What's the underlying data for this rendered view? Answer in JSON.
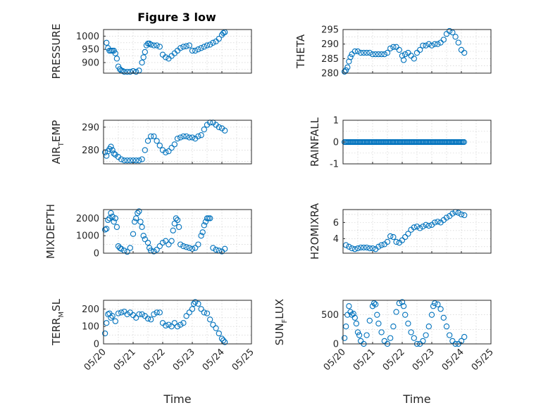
{
  "figure": {
    "title": "Figure 3 low",
    "colors": {
      "marker": "#0072bd",
      "axis": "#262626",
      "grid": "#c8c8c8",
      "background": "#ffffff"
    }
  },
  "chart_data": [
    {
      "type": "scatter",
      "name": "pressure-panel",
      "ylabel": "PRESSURE",
      "xlabel": "",
      "ylim": [
        860,
        1025
      ],
      "yticks": [
        900,
        950,
        1000
      ],
      "xlim": [
        "05/20",
        "05/25"
      ],
      "grid": true,
      "x": [
        20.1,
        20.15,
        20.2,
        20.25,
        20.3,
        20.35,
        20.4,
        20.45,
        20.5,
        20.55,
        20.6,
        20.65,
        20.7,
        20.8,
        20.9,
        21.0,
        21.1,
        21.2,
        21.3,
        21.35,
        21.4,
        21.45,
        21.5,
        21.55,
        21.6,
        21.7,
        21.8,
        21.9,
        22.0,
        22.1,
        22.2,
        22.3,
        22.4,
        22.5,
        22.6,
        22.7,
        22.8,
        22.9,
        23.0,
        23.1,
        23.2,
        23.3,
        23.4,
        23.5,
        23.6,
        23.7,
        23.8,
        23.9,
        24.0,
        24.05,
        24.1
      ],
      "y": [
        975,
        955,
        945,
        945,
        945,
        945,
        935,
        915,
        885,
        875,
        870,
        868,
        865,
        865,
        865,
        868,
        865,
        870,
        900,
        920,
        940,
        965,
        972,
        972,
        968,
        965,
        965,
        960,
        930,
        920,
        915,
        925,
        935,
        945,
        955,
        960,
        962,
        965,
        945,
        945,
        950,
        955,
        960,
        965,
        968,
        975,
        980,
        990,
        1005,
        1012,
        1015
      ]
    },
    {
      "type": "scatter",
      "name": "theta-panel",
      "ylabel": "THETA",
      "xlabel": "",
      "ylim": [
        280,
        295
      ],
      "yticks": [
        280,
        285,
        290,
        295
      ],
      "xlim": [
        "05/20",
        "05/25"
      ],
      "grid": true,
      "x": [
        20.05,
        20.1,
        20.15,
        20.2,
        20.25,
        20.3,
        20.4,
        20.5,
        20.6,
        20.7,
        20.8,
        20.9,
        21.0,
        21.1,
        21.2,
        21.3,
        21.4,
        21.5,
        21.6,
        21.7,
        21.8,
        21.9,
        22.0,
        22.05,
        22.1,
        22.2,
        22.3,
        22.4,
        22.5,
        22.6,
        22.7,
        22.8,
        22.9,
        23.0,
        23.1,
        23.2,
        23.3,
        23.4,
        23.5,
        23.6,
        23.7,
        23.8,
        23.9,
        24.0,
        24.1
      ],
      "y": [
        280.5,
        281,
        282,
        284,
        285.5,
        286.5,
        287.5,
        287.5,
        287,
        287,
        287,
        287,
        286.5,
        286.5,
        286.5,
        286.5,
        286.5,
        287,
        288.5,
        289,
        289,
        288,
        286,
        284.5,
        286.5,
        287,
        286,
        285,
        287,
        288,
        289.5,
        289.5,
        290,
        289.5,
        290,
        290,
        290.5,
        291.5,
        293.5,
        294.5,
        294,
        292.5,
        290.5,
        288,
        287
      ]
    },
    {
      "type": "scatter",
      "name": "air-temp-panel",
      "ylabel": "AIR_TEMP",
      "xlabel": "",
      "ylim": [
        274,
        293
      ],
      "yticks": [
        280,
        290
      ],
      "xlim": [
        "05/20",
        "05/25"
      ],
      "grid": true,
      "x": [
        20.05,
        20.1,
        20.15,
        20.2,
        20.25,
        20.3,
        20.35,
        20.4,
        20.5,
        20.6,
        20.7,
        20.8,
        20.9,
        21.0,
        21.1,
        21.2,
        21.3,
        21.4,
        21.5,
        21.6,
        21.7,
        21.8,
        21.9,
        22.0,
        22.1,
        22.2,
        22.3,
        22.4,
        22.5,
        22.6,
        22.7,
        22.8,
        22.9,
        23.0,
        23.1,
        23.2,
        23.3,
        23.4,
        23.5,
        23.6,
        23.7,
        23.8,
        23.9,
        24.0,
        24.1
      ],
      "y": [
        279,
        277.5,
        279.5,
        280.5,
        281.5,
        280,
        278.5,
        278,
        277,
        276,
        275.5,
        275.5,
        275.5,
        275.5,
        275.5,
        275.5,
        276,
        280,
        284,
        286,
        286,
        284,
        282,
        280,
        279,
        279.5,
        281,
        282.5,
        285,
        285.5,
        286,
        286,
        285.5,
        285.5,
        285,
        286,
        286.5,
        289,
        291,
        292,
        292,
        291,
        290,
        289.5,
        288.5
      ]
    },
    {
      "type": "scatter",
      "name": "rainfall-panel",
      "ylabel": "RAINFALL",
      "xlabel": "",
      "ylim": [
        -1,
        1
      ],
      "yticks": [
        -1,
        0,
        1
      ],
      "xlim": [
        "05/20",
        "05/25"
      ],
      "grid": true,
      "x_range": [
        20.05,
        24.1
      ],
      "y_constant": 0
    },
    {
      "type": "scatter",
      "name": "mixdepth-panel",
      "ylabel": "MIXDEPTH",
      "xlabel": "",
      "ylim": [
        0,
        2500
      ],
      "yticks": [
        0,
        1000,
        2000
      ],
      "xlim": [
        "05/20",
        "05/25"
      ],
      "grid": true,
      "x": [
        20.05,
        20.1,
        20.15,
        20.2,
        20.25,
        20.3,
        20.35,
        20.4,
        20.45,
        20.5,
        20.55,
        20.6,
        20.7,
        20.8,
        20.9,
        21.0,
        21.05,
        21.1,
        21.15,
        21.2,
        21.25,
        21.3,
        21.35,
        21.4,
        21.5,
        21.55,
        21.6,
        21.7,
        21.8,
        21.9,
        22.0,
        22.1,
        22.2,
        22.3,
        22.35,
        22.4,
        22.45,
        22.5,
        22.55,
        22.6,
        22.7,
        22.8,
        22.9,
        23.0,
        23.1,
        23.2,
        23.3,
        23.35,
        23.4,
        23.45,
        23.5,
        23.55,
        23.6,
        23.7,
        23.8,
        23.9,
        24.0,
        24.1
      ],
      "y": [
        1350,
        1400,
        1900,
        2000,
        2300,
        2100,
        1800,
        2000,
        1500,
        400,
        300,
        250,
        150,
        80,
        300,
        1100,
        1800,
        2000,
        2300,
        2400,
        1800,
        1500,
        1000,
        800,
        600,
        300,
        150,
        100,
        200,
        400,
        600,
        700,
        500,
        700,
        1300,
        1700,
        2000,
        1900,
        1500,
        500,
        400,
        350,
        300,
        250,
        300,
        500,
        1000,
        1200,
        1600,
        1800,
        2000,
        2000,
        2000,
        300,
        200,
        150,
        100,
        250
      ]
    },
    {
      "type": "scatter",
      "name": "h2omixra-panel",
      "ylabel": "H2OMIXRA",
      "xlabel": "",
      "ylim": [
        2.2,
        7.6
      ],
      "yticks": [
        4,
        6
      ],
      "xlim": [
        "05/20",
        "05/25"
      ],
      "grid": true,
      "x": [
        20.1,
        20.2,
        20.3,
        20.4,
        20.5,
        20.6,
        20.7,
        20.8,
        20.9,
        21.0,
        21.1,
        21.2,
        21.3,
        21.4,
        21.5,
        21.6,
        21.7,
        21.8,
        21.9,
        22.0,
        22.1,
        22.2,
        22.3,
        22.4,
        22.5,
        22.6,
        22.7,
        22.8,
        22.9,
        23.0,
        23.1,
        23.2,
        23.3,
        23.4,
        23.5,
        23.6,
        23.7,
        23.8,
        23.9,
        24.0,
        24.1
      ],
      "y": [
        3.2,
        3.0,
        2.8,
        2.7,
        2.8,
        2.9,
        2.9,
        2.9,
        2.8,
        2.8,
        2.7,
        3.0,
        3.2,
        3.3,
        3.6,
        4.3,
        4.2,
        3.6,
        3.5,
        3.8,
        4.2,
        4.6,
        5.1,
        5.4,
        5.5,
        5.3,
        5.5,
        5.7,
        5.6,
        5.7,
        6.0,
        6.1,
        6.0,
        6.3,
        6.6,
        6.8,
        7.1,
        7.3,
        7.2,
        7.0,
        6.9
      ]
    },
    {
      "type": "scatter",
      "name": "terr-msl-panel",
      "ylabel": "TERR_MSL",
      "xlabel": "Time",
      "ylim": [
        0,
        250
      ],
      "yticks": [
        0,
        100,
        200
      ],
      "xlim": [
        "05/20",
        "05/25"
      ],
      "grid": true,
      "xticks": [
        "05/20",
        "05/21",
        "05/22",
        "05/23",
        "05/24",
        "05/25"
      ],
      "x": [
        20.05,
        20.1,
        20.15,
        20.2,
        20.25,
        20.3,
        20.4,
        20.5,
        20.6,
        20.7,
        20.8,
        20.9,
        21.0,
        21.1,
        21.2,
        21.3,
        21.4,
        21.5,
        21.6,
        21.7,
        21.8,
        21.9,
        22.0,
        22.1,
        22.2,
        22.3,
        22.4,
        22.5,
        22.6,
        22.7,
        22.8,
        22.9,
        23.0,
        23.05,
        23.1,
        23.2,
        23.3,
        23.4,
        23.5,
        23.6,
        23.7,
        23.8,
        23.9,
        24.0,
        24.05,
        24.1
      ],
      "y": [
        60,
        120,
        170,
        175,
        150,
        160,
        130,
        175,
        180,
        185,
        170,
        180,
        165,
        150,
        170,
        170,
        160,
        145,
        140,
        170,
        180,
        180,
        120,
        105,
        110,
        100,
        120,
        100,
        110,
        120,
        160,
        180,
        200,
        230,
        240,
        230,
        200,
        180,
        175,
        140,
        110,
        90,
        60,
        30,
        20,
        10
      ]
    },
    {
      "type": "scatter",
      "name": "sun-flux-panel",
      "ylabel": "SUN_FLUX",
      "xlabel": "Time",
      "ylim": [
        0,
        750
      ],
      "yticks": [
        0,
        500
      ],
      "xlim": [
        "05/20",
        "05/25"
      ],
      "grid": true,
      "xticks": [
        "05/20",
        "05/21",
        "05/22",
        "05/23",
        "05/24",
        "05/25"
      ],
      "x": [
        20.05,
        20.1,
        20.15,
        20.2,
        20.25,
        20.3,
        20.35,
        20.4,
        20.45,
        20.5,
        20.55,
        20.6,
        20.7,
        20.8,
        20.9,
        21.0,
        21.05,
        21.1,
        21.15,
        21.2,
        21.3,
        21.4,
        21.5,
        21.6,
        21.7,
        21.8,
        21.9,
        22.0,
        22.05,
        22.1,
        22.2,
        22.3,
        22.4,
        22.5,
        22.6,
        22.7,
        22.8,
        22.9,
        23.0,
        23.05,
        23.1,
        23.2,
        23.3,
        23.4,
        23.5,
        23.6,
        23.7,
        23.8,
        23.9,
        24.0,
        24.1
      ],
      "y": [
        100,
        300,
        500,
        650,
        550,
        500,
        520,
        450,
        350,
        200,
        150,
        50,
        0,
        150,
        400,
        650,
        700,
        680,
        500,
        350,
        200,
        50,
        0,
        100,
        300,
        550,
        700,
        720,
        650,
        500,
        350,
        200,
        100,
        0,
        0,
        50,
        150,
        300,
        500,
        650,
        700,
        680,
        600,
        450,
        300,
        150,
        50,
        0,
        0,
        50,
        120
      ]
    }
  ]
}
